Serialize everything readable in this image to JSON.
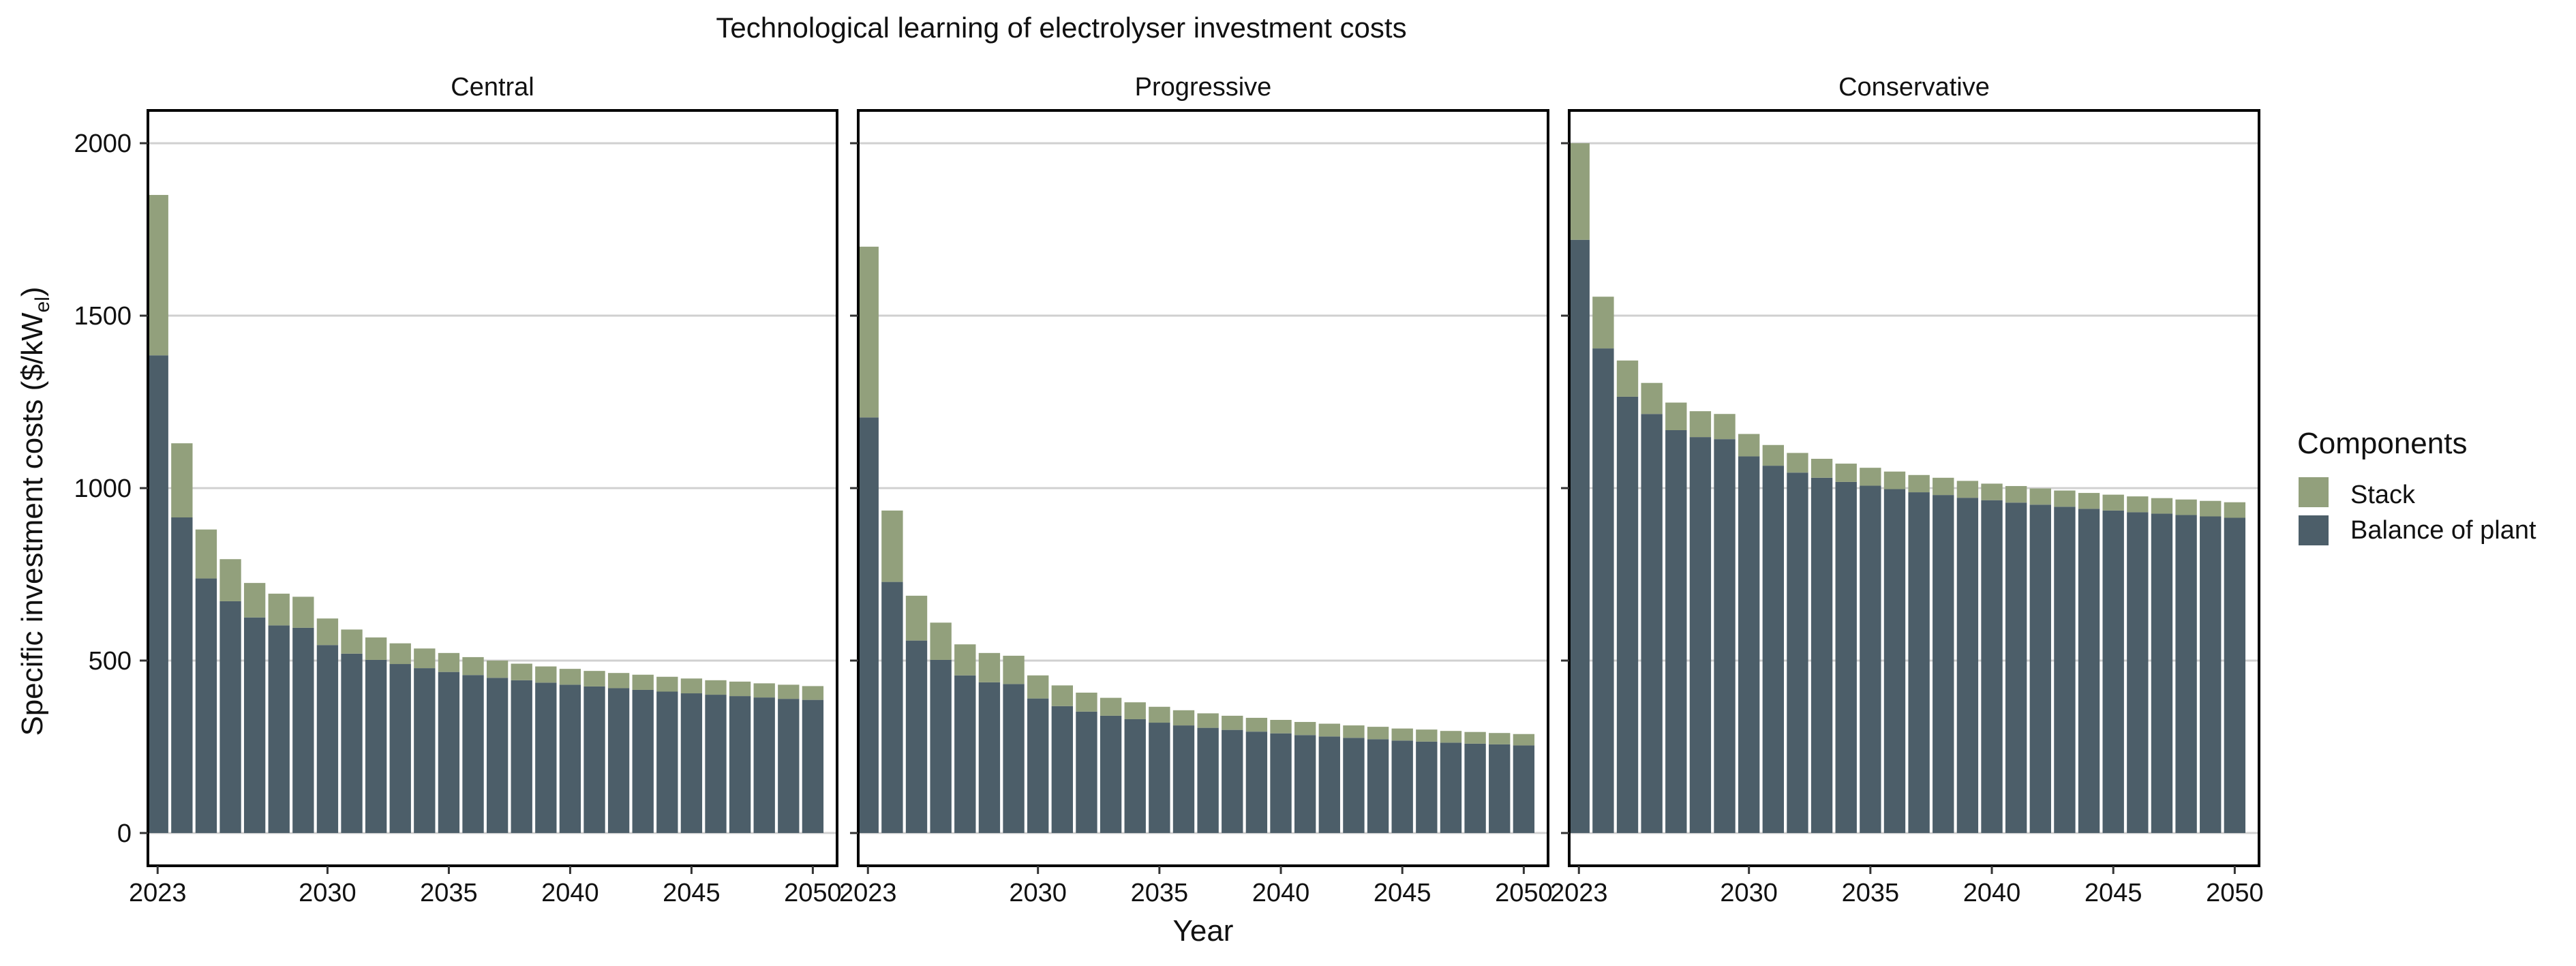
{
  "title": "Technological learning of electrolyser investment costs",
  "xlabel": "Year",
  "ylabel_main": "Specific investment costs ($/kW",
  "ylabel_sub": "el",
  "ylabel_close": ")",
  "legend": {
    "title": "Components",
    "items": [
      {
        "label": "Stack",
        "color": "#92a07c"
      },
      {
        "label": "Balance of plant",
        "color": "#4c5e69"
      }
    ]
  },
  "colors": {
    "stack": "#92a07c",
    "bop": "#4c5e69",
    "grid": "#d0d0d0"
  },
  "chart_data": {
    "type": "bar",
    "stacked": true,
    "facet_order": [
      "Central",
      "Progressive",
      "Conservative"
    ],
    "x": [
      2023,
      2024,
      2025,
      2026,
      2027,
      2028,
      2029,
      2030,
      2031,
      2032,
      2033,
      2034,
      2035,
      2036,
      2037,
      2038,
      2039,
      2040,
      2041,
      2042,
      2043,
      2044,
      2045,
      2046,
      2047,
      2048,
      2049,
      2050
    ],
    "x_ticks": [
      2023,
      2030,
      2035,
      2040,
      2045,
      2050
    ],
    "y_ticks": [
      0,
      500,
      1000,
      1500,
      2000
    ],
    "ylim": [
      -95,
      2095
    ],
    "xlim": [
      2022.6,
      2051.0
    ],
    "grid": "horizontal",
    "legend_position": "right",
    "panels": [
      {
        "name": "Central",
        "series": [
          {
            "name": "Balance of plant",
            "values": [
              1385,
              915,
              738,
              672,
              625,
              602,
              595,
              545,
              520,
              502,
              490,
              478,
              467,
              458,
              450,
              443,
              436,
              430,
              425,
              420,
              415,
              410,
              405,
              401,
              397,
              393,
              389,
              386
            ]
          },
          {
            "name": "Stack",
            "values": [
              465,
              215,
              142,
              122,
              100,
              92,
              90,
              77,
              70,
              65,
              60,
              57,
              55,
              52,
              50,
              48,
              47,
              46,
              45,
              44,
              44,
              43,
              43,
              42,
              42,
              41,
              41,
              40
            ]
          }
        ]
      },
      {
        "name": "Progressive",
        "series": [
          {
            "name": "Balance of plant",
            "values": [
              1205,
              728,
              558,
              502,
              457,
              437,
              432,
              390,
              368,
              352,
              340,
              330,
              320,
              312,
              305,
              299,
              294,
              289,
              284,
              280,
              276,
              272,
              268,
              265,
              262,
              259,
              257,
              254
            ]
          },
          {
            "name": "Stack",
            "values": [
              495,
              207,
              130,
              108,
              90,
              85,
              82,
              67,
              60,
              55,
              52,
              49,
              46,
              44,
              42,
              41,
              40,
              39,
              38,
              37,
              36,
              36,
              35,
              35,
              34,
              34,
              33,
              33
            ]
          }
        ]
      },
      {
        "name": "Conservative",
        "series": [
          {
            "name": "Balance of plant",
            "values": [
              1720,
              1405,
              1265,
              1215,
              1168,
              1148,
              1142,
              1092,
              1065,
              1045,
              1030,
              1018,
              1007,
              997,
              988,
              980,
              972,
              965,
              958,
              952,
              946,
              940,
              935,
              930,
              926,
              922,
              918,
              914
            ]
          },
          {
            "name": "Stack",
            "values": [
              280,
              150,
              105,
              90,
              80,
              75,
              73,
              65,
              60,
              57,
              55,
              53,
              52,
              51,
              50,
              50,
              49,
              48,
              48,
              47,
              47,
              46,
              46,
              46,
              45,
              45,
              45,
              45
            ]
          }
        ]
      }
    ]
  }
}
